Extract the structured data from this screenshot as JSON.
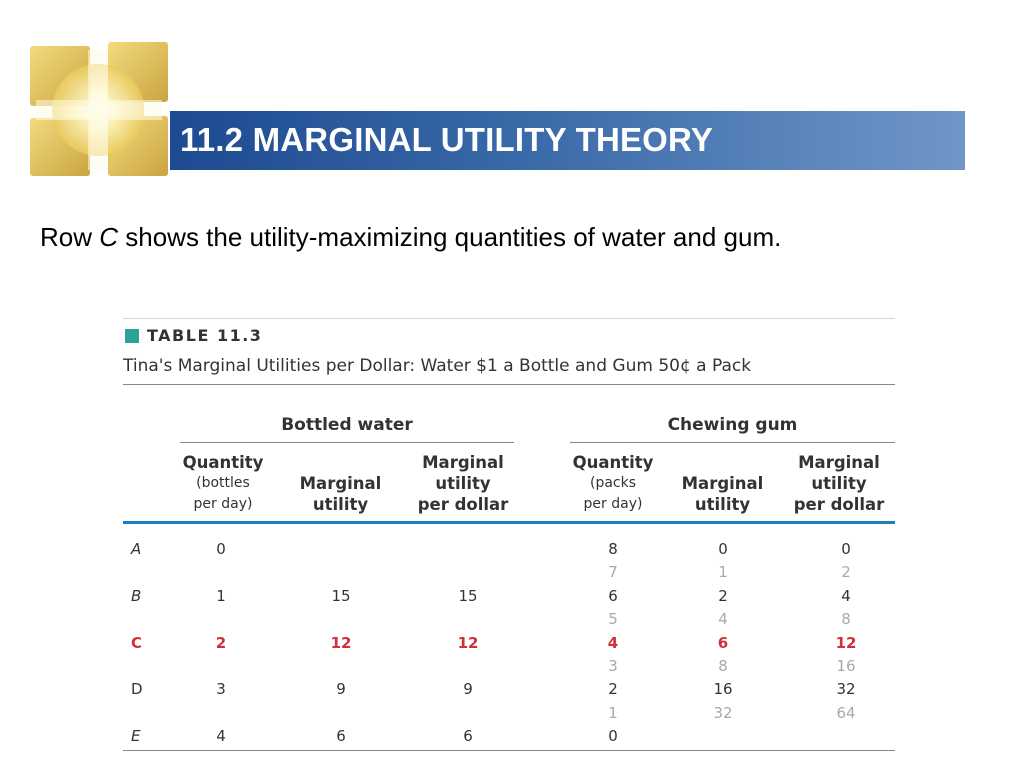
{
  "header": {
    "title": "11.2 MARGINAL UTILITY THEORY"
  },
  "subtitle": {
    "pre": "Row ",
    "italic": "C",
    "post": " shows the utility-maximizing quantities of water and gum."
  },
  "table": {
    "label": "TABLE 11.3",
    "caption": "Tina's Marginal Utilities per Dollar: Water $1 a Bottle and Gum 50¢ a Pack",
    "group_water": "Bottled water",
    "group_gum": "Chewing gum",
    "water_headers": {
      "quantity": "Quantity",
      "quantity_sub1": "(bottles",
      "quantity_sub2": "per day)",
      "mu1": "Marginal",
      "mu2": "utility",
      "mupd1": "Marginal",
      "mupd2": "utility",
      "mupd3": "per dollar"
    },
    "gum_headers": {
      "quantity": "Quantity",
      "quantity_sub1": "(packs",
      "quantity_sub2": "per day)",
      "mu1": "Marginal",
      "mu2": "utility",
      "mupd1": "Marginal",
      "mupd2": "utility",
      "mupd3": "per dollar"
    },
    "rows": [
      {
        "label": "A",
        "wq": "0",
        "wmu": "",
        "wmupd": "",
        "gq": "8",
        "gmu": "0",
        "gmupd": "0"
      },
      {
        "label": "",
        "wq": "",
        "wmu": "",
        "wmupd": "",
        "gq": "7",
        "gmu": "1",
        "gmupd": "2"
      },
      {
        "label": "B",
        "wq": "1",
        "wmu": "15",
        "wmupd": "15",
        "gq": "6",
        "gmu": "2",
        "gmupd": "4"
      },
      {
        "label": "",
        "wq": "",
        "wmu": "",
        "wmupd": "",
        "gq": "5",
        "gmu": "4",
        "gmupd": "8"
      },
      {
        "label": "C",
        "wq": "2",
        "wmu": "12",
        "wmupd": "12",
        "gq": "4",
        "gmu": "6",
        "gmupd": "12"
      },
      {
        "label": "",
        "wq": "",
        "wmu": "",
        "wmupd": "",
        "gq": "3",
        "gmu": "8",
        "gmupd": "16"
      },
      {
        "label": "D",
        "wq": "3",
        "wmu": "9",
        "wmupd": "9",
        "gq": "2",
        "gmu": "16",
        "gmupd": "32"
      },
      {
        "label": "",
        "wq": "",
        "wmu": "",
        "wmupd": "",
        "gq": "1",
        "gmu": "32",
        "gmupd": "64"
      },
      {
        "label": "E",
        "wq": "4",
        "wmu": "6",
        "wmupd": "6",
        "gq": "0",
        "gmu": "",
        "gmupd": ""
      }
    ]
  },
  "colors": {
    "banner_dark": "#1d4a91",
    "banner_light": "#6f96c8",
    "highlight_red": "#d0303a",
    "rule_blue": "#1c7ec0",
    "label_teal": "#2aa39b"
  }
}
